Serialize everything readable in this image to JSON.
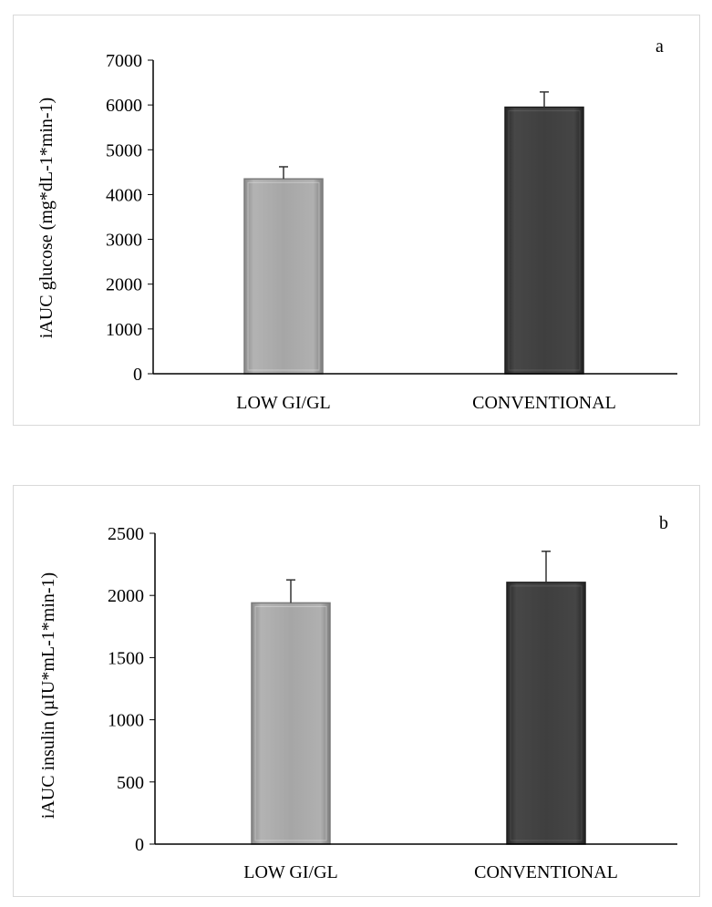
{
  "colors": {
    "low_bar": "#a6a6a6",
    "conventional_bar": "#3f3f3f",
    "axis": "#000000",
    "frame": "#d9d9d9",
    "error_bar": "#333333"
  },
  "chart_data": [
    {
      "type": "bar",
      "panel_label": "a",
      "title": "",
      "xlabel": "",
      "ylabel": "iAUC glucose (mg*dL-1*min-1)",
      "categories": [
        "LOW GI/GL",
        "CONVENTIONAL"
      ],
      "values": [
        4350,
        5950
      ],
      "errors": [
        270,
        340
      ],
      "ylim": [
        0,
        7000
      ],
      "yticks": [
        "0",
        "1000",
        "2000",
        "3000",
        "4000",
        "5000",
        "6000",
        "7000"
      ],
      "grid": false
    },
    {
      "type": "bar",
      "panel_label": "b",
      "title": "",
      "xlabel": "",
      "ylabel": "iAUC insulin (µIU*mL-1*min-1)",
      "categories": [
        "LOW GI/GL",
        "CONVENTIONAL"
      ],
      "values": [
        1940,
        2105
      ],
      "errors": [
        185,
        250
      ],
      "ylim": [
        0,
        2500
      ],
      "yticks": [
        "0",
        "500",
        "1000",
        "1500",
        "2000",
        "2500"
      ],
      "grid": false
    }
  ]
}
